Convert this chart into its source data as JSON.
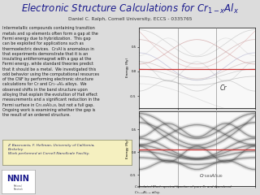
{
  "title_math": "$\\mathbf{\\it{Electronic\\ Structure\\ Calculations\\ for\\ Cr_{1-x}Al_x}}$",
  "subtitle": "Daniel C. Ralph, Cornell University, ECCS - 0335765",
  "bg_color": "#dcdcdc",
  "title_color": "#1a1a8c",
  "body_text_lines": [
    "Intermetallic compounds containing transition",
    "metals and sp elements often form a gap at the",
    "Fermi energy due to hybridization.  This gap",
    "can be exploited for applications such as",
    "thermoelectric devices.  Cr₃Al is anomalous in",
    "that experiments demonstrate that it is an",
    "insulating antiferromagnet with a gap at the",
    "Fermi energy, while standard theories predict",
    "that it should be a metal.  We investigated this",
    "odd behavior using the computational resources",
    "of the CNF by performing electronic structure",
    "calculations for Cr and Cr₁₋ₓAlₓ alloys.  We",
    "observed shifts in the band structure upon",
    "alloying that explain the evolution of Hall effect",
    "measurements and a significant reduction in the",
    "Fermi surface in Cr₀.₈₀Al₀.₂₀, but not a full gap.",
    "Ongoing work is examining whether the gap is",
    "the result of an ordered structure."
  ],
  "ref_text_lines": [
    "Z. Baxevanis, F. Hellman, University of California,",
    "Berkeley",
    "Work performed at Cornell NanoScale Facility."
  ],
  "caption_text": "Calculated Bloch spectral function of pure Cr and disordered",
  "caption_text2": "Cr₀.₈₀Al₀.₂₀ alloy.",
  "label_cr": "Cr",
  "label_crala": "Cr₀.₈₀Al₀.₂₀",
  "plot_bg": "#f8f8f8",
  "fermi_color": "#cc3333",
  "nnin_color": "#1a1a8c",
  "ref_bg": "#f5f0c0",
  "ref_border": "#999977"
}
